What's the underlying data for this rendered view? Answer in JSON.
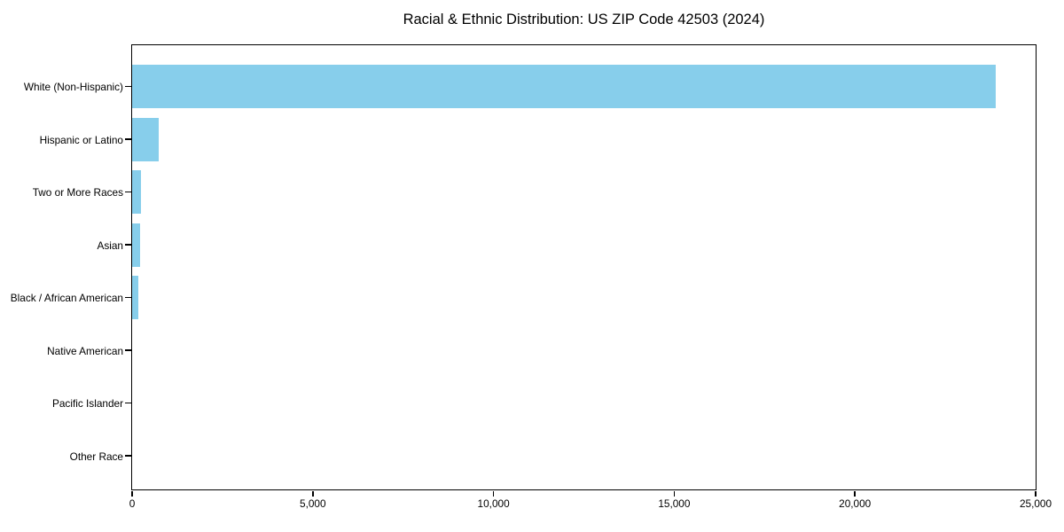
{
  "title": "Racial & Ethnic Distribution: US ZIP Code 42503 (2024)",
  "colors": {
    "bar": "#87CEEB",
    "axis": "#000000",
    "background": "#ffffff",
    "text": "#000000"
  },
  "chart_data": {
    "type": "bar",
    "orientation": "horizontal",
    "title": "Racial & Ethnic Distribution: US ZIP Code 42503 (2024)",
    "categories": [
      "White (Non-Hispanic)",
      "Hispanic or Latino",
      "Two or More Races",
      "Asian",
      "Black / African American",
      "Native American",
      "Pacific Islander",
      "Other Race"
    ],
    "values": [
      23900,
      740,
      250,
      230,
      160,
      0,
      0,
      0
    ],
    "xlabel": "",
    "ylabel": "",
    "xlim": [
      0,
      25000
    ],
    "x_ticks": [
      0,
      5000,
      10000,
      15000,
      20000,
      25000
    ],
    "x_tick_labels": [
      "0",
      "5,000",
      "10,000",
      "15,000",
      "20,000",
      "25,000"
    ],
    "grid": false,
    "legend": null,
    "bar_color": "#87CEEB"
  }
}
